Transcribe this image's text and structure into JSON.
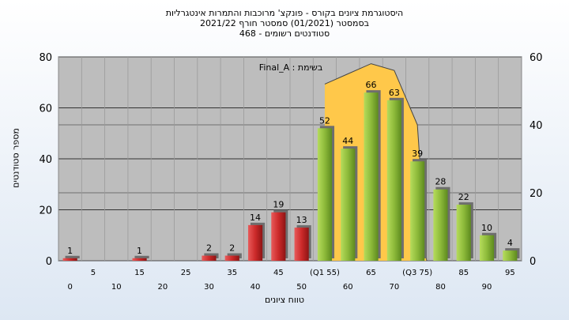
{
  "chart_data": {
    "type": "bar",
    "title_lines": [
      "היסטוגרמת ציונים בקורס - פונקצ' מרוכבות והתמרות אינטגרליות",
      "בסמסטר  (01/2021)  סמסטר חורף 2021/22",
      "סטודנטים רשומים - 468"
    ],
    "xlabel": "טווח ציונים",
    "ylabel": "מספר סטודנטים",
    "annotation": "בשימת : Final_A",
    "ylim": [
      0,
      80
    ],
    "y_ticks": [
      "0",
      "20",
      "40",
      "60",
      "80"
    ],
    "ylim_right": [
      0,
      60
    ],
    "y_ticks_right": [
      "0",
      "20",
      "40",
      "60"
    ],
    "grid": true,
    "x_tick_labels_top": [
      "5",
      "15",
      "25",
      "35",
      "45",
      "(Q1 55)",
      "65",
      "(Q3 75)",
      "85",
      "95"
    ],
    "x_tick_labels_bottom": [
      "0",
      "10",
      "20",
      "30",
      "40",
      "50",
      "60",
      "70",
      "80",
      "90"
    ],
    "categories": [
      "0",
      "5",
      "10",
      "15",
      "20",
      "25",
      "30",
      "35",
      "40",
      "45",
      "50",
      "55",
      "60",
      "65",
      "70",
      "75",
      "80",
      "85",
      "90",
      "95"
    ],
    "values": [
      1,
      0,
      0,
      1,
      0,
      0,
      2,
      2,
      14,
      19,
      13,
      52,
      44,
      66,
      63,
      39,
      28,
      22,
      10,
      4
    ],
    "data_labels": [
      "1",
      "",
      "",
      "1",
      "",
      "",
      "2",
      "2",
      "14",
      "19",
      "13",
      "52",
      "44",
      "66",
      "63",
      "39",
      "28",
      "22",
      "10",
      "4"
    ],
    "fail_color": "#cc2a2a",
    "pass_color": "#8dba3a",
    "distribution_color": "#ffc84a",
    "plot_background": "#bdbdbd",
    "distribution_area": {
      "type": "area",
      "axis": "right",
      "x": [
        55,
        60,
        65,
        70,
        75,
        77
      ],
      "values": [
        52,
        55,
        58,
        56,
        40,
        0
      ]
    }
  }
}
